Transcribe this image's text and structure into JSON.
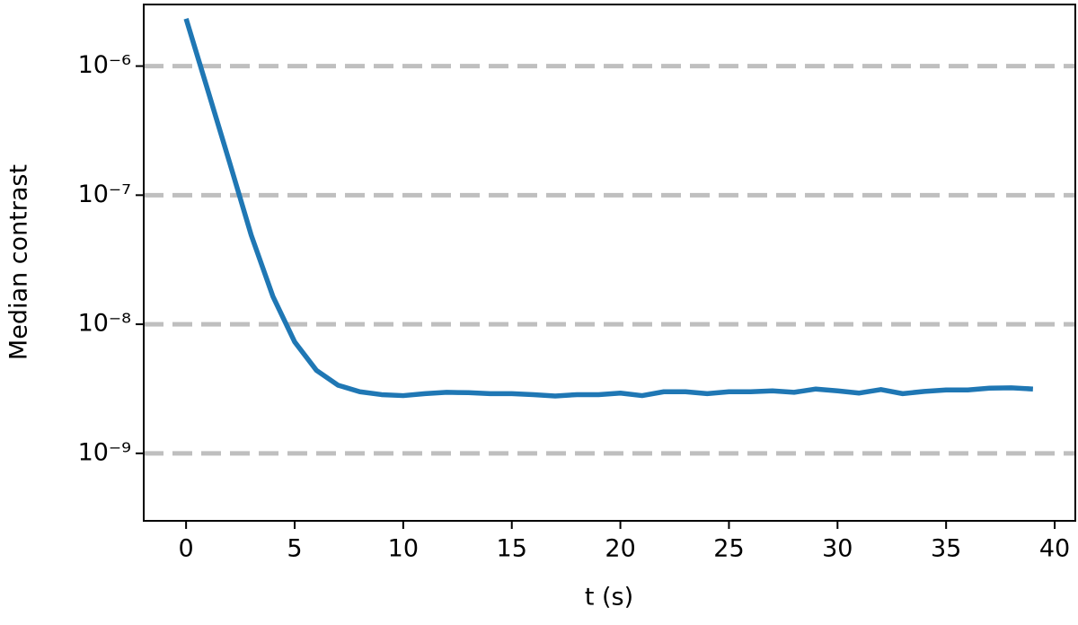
{
  "chart_data": {
    "type": "line",
    "x_label": "t (s)",
    "y_label": "Median contrast",
    "x": [
      0,
      1,
      2,
      3,
      4,
      5,
      6,
      7,
      8,
      9,
      10,
      11,
      12,
      13,
      14,
      15,
      16,
      17,
      18,
      19,
      20,
      21,
      22,
      23,
      24,
      25,
      26,
      27,
      28,
      29,
      30,
      31,
      32,
      33,
      34,
      35,
      36,
      37,
      38,
      39
    ],
    "values": [
      2.33e-06,
      6.5e-07,
      1.8e-07,
      4.9e-08,
      1.64e-08,
      7.3e-09,
      4.4e-09,
      3.37e-09,
      3e-09,
      2.85e-09,
      2.8e-09,
      2.9e-09,
      2.97e-09,
      2.95e-09,
      2.9e-09,
      2.9e-09,
      2.85e-09,
      2.78e-09,
      2.85e-09,
      2.85e-09,
      2.93e-09,
      2.8e-09,
      3e-09,
      3e-09,
      2.9e-09,
      3e-09,
      3e-09,
      3.05e-09,
      2.97e-09,
      3.15e-09,
      3.05e-09,
      2.93e-09,
      3.12e-09,
      2.9e-09,
      3.02e-09,
      3.1e-09,
      3.1e-09,
      3.2e-09,
      3.22e-09,
      3.15e-09
    ],
    "color": "#1f77b4",
    "xlim": [
      -1.95,
      40.95
    ],
    "xticks": [
      0,
      5,
      10,
      15,
      20,
      25,
      30,
      35,
      40
    ],
    "ylim": [
      3e-10,
      3e-06
    ],
    "y_scale": "log",
    "yticks": [
      {
        "value": 1e-09,
        "label": "10⁻⁹"
      },
      {
        "value": 1e-08,
        "label": "10⁻⁸"
      },
      {
        "value": 1e-07,
        "label": "10⁻⁷"
      },
      {
        "value": 1e-06,
        "label": "10⁻⁶"
      }
    ],
    "grid": true
  }
}
